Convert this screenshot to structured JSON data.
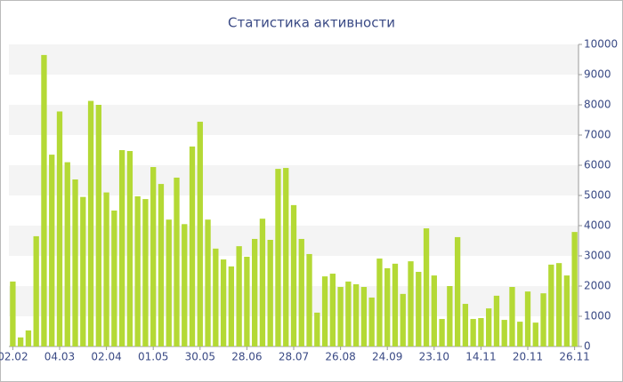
{
  "chart_data": {
    "type": "bar",
    "title": "Статистика активности",
    "categories": [
      "02.02",
      null,
      null,
      null,
      null,
      null,
      "04.03",
      null,
      null,
      null,
      null,
      null,
      "02.04",
      null,
      null,
      null,
      null,
      null,
      "01.05",
      null,
      null,
      null,
      null,
      null,
      "30.05",
      null,
      null,
      null,
      null,
      null,
      "28.06",
      null,
      null,
      null,
      null,
      null,
      "28.07",
      null,
      null,
      null,
      null,
      null,
      "26.08",
      null,
      null,
      null,
      null,
      null,
      "24.09",
      null,
      null,
      null,
      null,
      null,
      "23.10",
      null,
      null,
      null,
      null,
      null,
      "14.11",
      null,
      null,
      null,
      null,
      null,
      "20.11",
      null,
      null,
      null,
      null,
      null,
      "26.11"
    ],
    "values": [
      2150,
      300,
      530,
      3650,
      9650,
      6350,
      7780,
      6100,
      5530,
      4950,
      8130,
      8000,
      5100,
      4500,
      6500,
      6470,
      4970,
      4880,
      5940,
      5380,
      4200,
      5590,
      4050,
      6620,
      7440,
      4200,
      3240,
      2880,
      2650,
      3320,
      2970,
      3560,
      4230,
      3530,
      5880,
      5910,
      4680,
      3560,
      3060,
      1120,
      2320,
      2410,
      1970,
      2150,
      2060,
      1970,
      1620,
      2910,
      2590,
      2740,
      1740,
      2820,
      2470,
      3910,
      2350,
      910,
      2000,
      3620,
      1410,
      910,
      940,
      1260,
      1680,
      880,
      1970,
      820,
      1820,
      790,
      1760,
      2710,
      2760,
      2350,
      3790
    ],
    "color": "#b4d935",
    "ylim": [
      0,
      10000
    ],
    "yticks": [
      0,
      1000,
      2000,
      3000,
      4000,
      5000,
      6000,
      7000,
      8000,
      9000,
      10000
    ],
    "grid": true
  }
}
